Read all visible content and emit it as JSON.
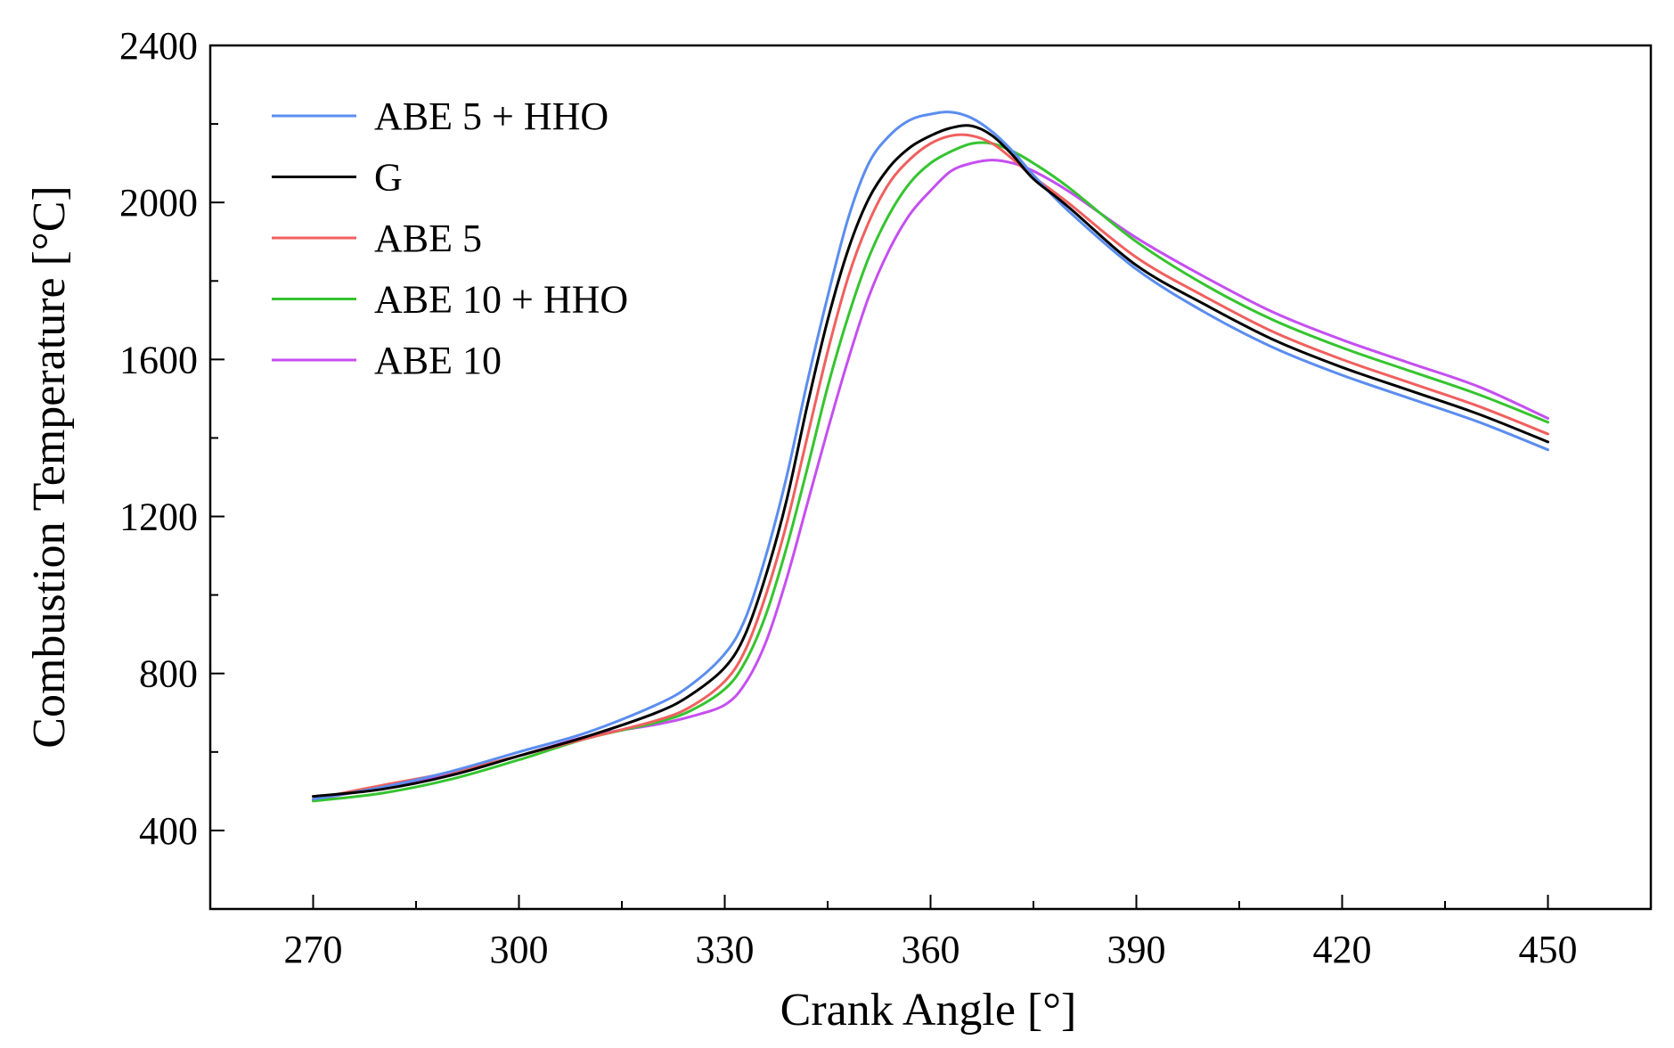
{
  "chart_data": {
    "type": "line",
    "title": "",
    "xlabel": "Crank Angle [°]",
    "ylabel": "Combustion Temperature [°C]",
    "xlim": [
      255,
      465
    ],
    "ylim": [
      200,
      2400
    ],
    "xticks": [
      270,
      300,
      330,
      360,
      390,
      420,
      450
    ],
    "yticks": [
      400,
      800,
      1200,
      1600,
      2000,
      2400
    ],
    "x_minor_step": 15,
    "y_minor_step": 200,
    "grid": false,
    "legend_position": "top-left",
    "series": [
      {
        "name": "ABE 5 + HHO",
        "color": "#5b8def",
        "points": [
          [
            270,
            480
          ],
          [
            280,
            510
          ],
          [
            290,
            550
          ],
          [
            300,
            600
          ],
          [
            310,
            650
          ],
          [
            320,
            720
          ],
          [
            325,
            770
          ],
          [
            330,
            850
          ],
          [
            333,
            940
          ],
          [
            336,
            1100
          ],
          [
            339,
            1300
          ],
          [
            342,
            1540
          ],
          [
            345,
            1760
          ],
          [
            348,
            1960
          ],
          [
            351,
            2100
          ],
          [
            354,
            2170
          ],
          [
            357,
            2210
          ],
          [
            360,
            2225
          ],
          [
            363,
            2230
          ],
          [
            366,
            2215
          ],
          [
            369,
            2180
          ],
          [
            372,
            2130
          ],
          [
            375,
            2070
          ],
          [
            380,
            1980
          ],
          [
            390,
            1830
          ],
          [
            400,
            1720
          ],
          [
            410,
            1630
          ],
          [
            420,
            1560
          ],
          [
            430,
            1500
          ],
          [
            440,
            1440
          ],
          [
            450,
            1370
          ]
        ]
      },
      {
        "name": "G",
        "color": "#000000",
        "points": [
          [
            270,
            487
          ],
          [
            280,
            505
          ],
          [
            290,
            540
          ],
          [
            300,
            590
          ],
          [
            310,
            640
          ],
          [
            320,
            700
          ],
          [
            325,
            745
          ],
          [
            330,
            815
          ],
          [
            333,
            900
          ],
          [
            336,
            1050
          ],
          [
            339,
            1240
          ],
          [
            342,
            1480
          ],
          [
            345,
            1700
          ],
          [
            348,
            1880
          ],
          [
            351,
            2010
          ],
          [
            354,
            2090
          ],
          [
            357,
            2140
          ],
          [
            360,
            2170
          ],
          [
            363,
            2190
          ],
          [
            366,
            2195
          ],
          [
            369,
            2170
          ],
          [
            372,
            2120
          ],
          [
            375,
            2060
          ],
          [
            380,
            1990
          ],
          [
            390,
            1840
          ],
          [
            400,
            1740
          ],
          [
            410,
            1650
          ],
          [
            420,
            1580
          ],
          [
            430,
            1520
          ],
          [
            440,
            1460
          ],
          [
            450,
            1390
          ]
        ]
      },
      {
        "name": "ABE 5",
        "color": "#f0605e",
        "points": [
          [
            270,
            480
          ],
          [
            280,
            515
          ],
          [
            290,
            548
          ],
          [
            300,
            590
          ],
          [
            310,
            635
          ],
          [
            320,
            680
          ],
          [
            325,
            715
          ],
          [
            330,
            780
          ],
          [
            333,
            860
          ],
          [
            336,
            1000
          ],
          [
            339,
            1180
          ],
          [
            342,
            1400
          ],
          [
            345,
            1620
          ],
          [
            348,
            1810
          ],
          [
            351,
            1950
          ],
          [
            354,
            2050
          ],
          [
            357,
            2110
          ],
          [
            360,
            2150
          ],
          [
            363,
            2170
          ],
          [
            366,
            2170
          ],
          [
            369,
            2150
          ],
          [
            372,
            2110
          ],
          [
            375,
            2065
          ],
          [
            380,
            2000
          ],
          [
            390,
            1860
          ],
          [
            400,
            1760
          ],
          [
            410,
            1670
          ],
          [
            420,
            1600
          ],
          [
            430,
            1540
          ],
          [
            440,
            1480
          ],
          [
            450,
            1410
          ]
        ]
      },
      {
        "name": "ABE 10 + HHO",
        "color": "#35c42f",
        "points": [
          [
            270,
            475
          ],
          [
            280,
            495
          ],
          [
            290,
            530
          ],
          [
            300,
            580
          ],
          [
            310,
            635
          ],
          [
            320,
            675
          ],
          [
            325,
            705
          ],
          [
            330,
            760
          ],
          [
            333,
            830
          ],
          [
            336,
            950
          ],
          [
            339,
            1120
          ],
          [
            342,
            1320
          ],
          [
            345,
            1530
          ],
          [
            348,
            1710
          ],
          [
            351,
            1860
          ],
          [
            354,
            1970
          ],
          [
            357,
            2050
          ],
          [
            360,
            2100
          ],
          [
            363,
            2130
          ],
          [
            366,
            2150
          ],
          [
            369,
            2150
          ],
          [
            372,
            2130
          ],
          [
            375,
            2100
          ],
          [
            380,
            2040
          ],
          [
            390,
            1900
          ],
          [
            400,
            1790
          ],
          [
            410,
            1700
          ],
          [
            420,
            1630
          ],
          [
            430,
            1570
          ],
          [
            440,
            1510
          ],
          [
            450,
            1440
          ]
        ]
      },
      {
        "name": "ABE 10",
        "color": "#c54ff0",
        "points": [
          [
            270,
            478
          ],
          [
            280,
            510
          ],
          [
            290,
            545
          ],
          [
            300,
            590
          ],
          [
            310,
            640
          ],
          [
            320,
            670
          ],
          [
            325,
            690
          ],
          [
            330,
            720
          ],
          [
            333,
            775
          ],
          [
            336,
            880
          ],
          [
            339,
            1040
          ],
          [
            342,
            1230
          ],
          [
            345,
            1420
          ],
          [
            348,
            1600
          ],
          [
            351,
            1760
          ],
          [
            354,
            1880
          ],
          [
            357,
            1970
          ],
          [
            360,
            2030
          ],
          [
            363,
            2080
          ],
          [
            366,
            2100
          ],
          [
            369,
            2108
          ],
          [
            372,
            2100
          ],
          [
            375,
            2080
          ],
          [
            380,
            2030
          ],
          [
            390,
            1910
          ],
          [
            400,
            1810
          ],
          [
            410,
            1720
          ],
          [
            420,
            1650
          ],
          [
            430,
            1590
          ],
          [
            440,
            1530
          ],
          [
            450,
            1450
          ]
        ]
      }
    ]
  }
}
